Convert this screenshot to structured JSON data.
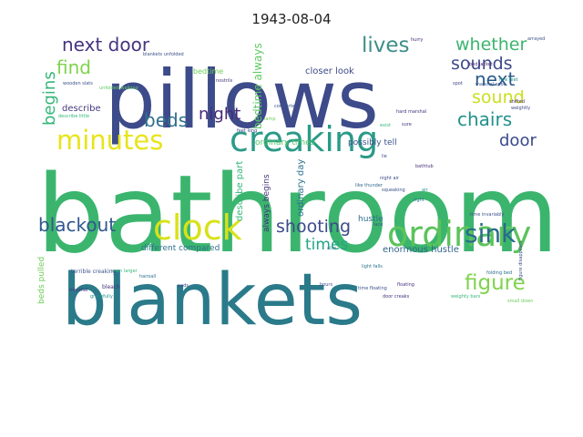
{
  "title": "1943-08-04",
  "wordcloud": {
    "words": [
      {
        "text": "bathroom",
        "color": "#3bb56e"
      },
      {
        "text": "pillows",
        "color": "#3d4b8a"
      },
      {
        "text": "blankets",
        "color": "#2a7a8a"
      },
      {
        "text": "creaking",
        "color": "#2a9a88"
      },
      {
        "text": "ordinary",
        "color": "#5bc35a"
      },
      {
        "text": "clock",
        "color": "#d8e219"
      },
      {
        "text": "minutes",
        "color": "#e8e41a"
      },
      {
        "text": "next door",
        "color": "#463480"
      },
      {
        "text": "lives",
        "color": "#3d8f8a"
      },
      {
        "text": "whether",
        "color": "#3bb56e"
      },
      {
        "text": "sounds",
        "color": "#3d4b8a"
      },
      {
        "text": "find",
        "color": "#7fd34e"
      },
      {
        "text": "next",
        "color": "#2a5a8a"
      },
      {
        "text": "sound",
        "color": "#c9e01f"
      },
      {
        "text": "beds",
        "color": "#30708e"
      },
      {
        "text": "night",
        "color": "#482878"
      },
      {
        "text": "chairs",
        "color": "#21918c"
      },
      {
        "text": "door",
        "color": "#3a4a8a"
      },
      {
        "text": "begins",
        "color": "#35b779"
      },
      {
        "text": "sink",
        "color": "#2a6a8e"
      },
      {
        "text": "figure",
        "color": "#7fd34e"
      },
      {
        "text": "blackout",
        "color": "#30578e"
      },
      {
        "text": "shooting",
        "color": "#3d4a8a"
      },
      {
        "text": "times",
        "color": "#21a585"
      },
      {
        "text": "bedtime always",
        "color": "#5ec962"
      },
      {
        "text": "closer look",
        "color": "#3e4a89"
      },
      {
        "text": "bedtime",
        "color": "#6ece58"
      },
      {
        "text": "describe",
        "color": "#443a83"
      },
      {
        "text": "ordinary times",
        "color": "#52c569"
      },
      {
        "text": "possibly tell",
        "color": "#3b528b"
      },
      {
        "text": "ordinary day",
        "color": "#2c728e"
      },
      {
        "text": "describe part",
        "color": "#35b779"
      },
      {
        "text": "always begins",
        "color": "#46337e"
      },
      {
        "text": "hustle",
        "color": "#2d708e"
      },
      {
        "text": "enormous hustle",
        "color": "#32658e"
      },
      {
        "text": "different compared",
        "color": "#2c728e"
      },
      {
        "text": "beds pulled",
        "color": "#6ece58"
      },
      {
        "text": "figure disappears",
        "color": "#3b528b"
      },
      {
        "text": "night air",
        "color": "#3e4a89"
      },
      {
        "text": "like thunder",
        "color": "#31688e"
      },
      {
        "text": "hard marshal",
        "color": "#46337e"
      },
      {
        "text": "unfolded walking",
        "color": "#5ec962"
      },
      {
        "text": "describe little",
        "color": "#35b779"
      },
      {
        "text": "blankets unfolded",
        "color": "#3b528b"
      },
      {
        "text": "folding bed",
        "color": "#2c728e"
      },
      {
        "text": "bed jacket",
        "color": "#482878"
      },
      {
        "text": "marshal spot",
        "color": "#3b528b"
      },
      {
        "text": "five feet",
        "color": "#21918c"
      },
      {
        "text": "feet long",
        "color": "#3e4a89"
      },
      {
        "text": "time floating",
        "color": "#3b528b"
      },
      {
        "text": "door creaks",
        "color": "#46337e"
      },
      {
        "text": "light falls",
        "color": "#2c728e"
      },
      {
        "text": "small down",
        "color": "#6ece58"
      },
      {
        "text": "weighty bars",
        "color": "#35b779"
      },
      {
        "text": "wooden slats",
        "color": "#3b528b"
      },
      {
        "text": "bleach",
        "color": "#46337e"
      },
      {
        "text": "hairsall",
        "color": "#2c728e"
      },
      {
        "text": "even larger",
        "color": "#35b779"
      },
      {
        "text": "terrible creaking",
        "color": "#3b528b"
      },
      {
        "text": "marshal",
        "color": "#46337e"
      },
      {
        "text": "gracefully",
        "color": "#21918c"
      },
      {
        "text": "pads",
        "color": "#3e4a89"
      },
      {
        "text": "nostrils",
        "color": "#46337e"
      },
      {
        "text": "comforter",
        "color": "#3b528b"
      },
      {
        "text": "shifted",
        "color": "#482878"
      },
      {
        "text": "weightly",
        "color": "#3e4a89"
      },
      {
        "text": "arrayed",
        "color": "#3b528b"
      },
      {
        "text": "hurry",
        "color": "#482878"
      },
      {
        "text": "spot",
        "color": "#3e4a89"
      },
      {
        "text": "lie",
        "color": "#3b528b"
      },
      {
        "text": "bathtub",
        "color": "#46337e"
      },
      {
        "text": "exist",
        "color": "#35b779"
      },
      {
        "text": "lamp",
        "color": "#6ece58"
      },
      {
        "text": "squeaking",
        "color": "#3b528b"
      },
      {
        "text": "floating",
        "color": "#46337e"
      },
      {
        "text": "hours",
        "color": "#3e4a89"
      },
      {
        "text": "also",
        "color": "#2c728e"
      },
      {
        "text": "lace",
        "color": "#3b528b"
      },
      {
        "text": "sure",
        "color": "#46337e"
      },
      {
        "text": "time invariably",
        "color": "#3b528b"
      },
      {
        "text": "right",
        "color": "#2c728e"
      },
      {
        "text": "air",
        "color": "#21918c"
      }
    ]
  }
}
